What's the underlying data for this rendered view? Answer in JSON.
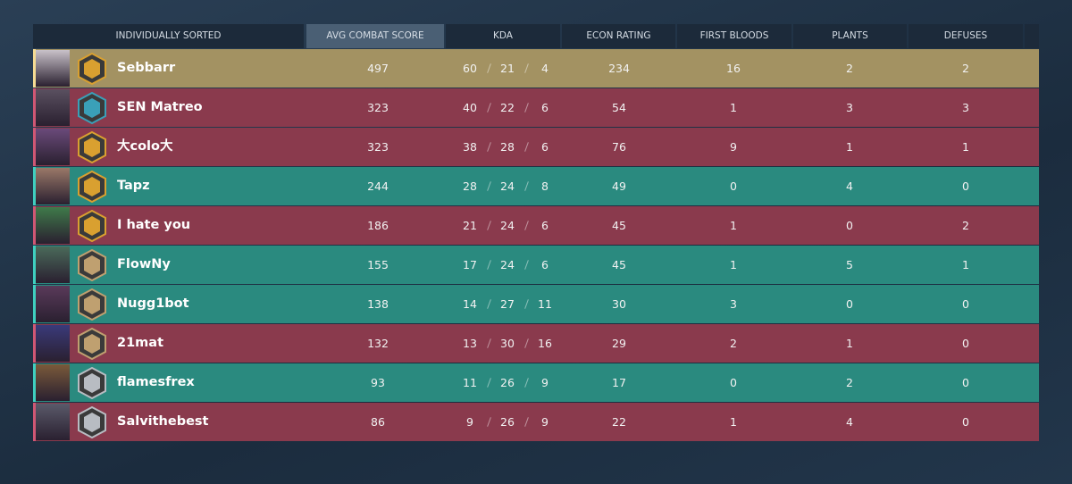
{
  "table": {
    "headers": [
      "INDIVIDUALLY SORTED",
      "AVG COMBAT SCORE",
      "KDA",
      "ECON RATING",
      "FIRST BLOODS",
      "PLANTS",
      "DEFUSES"
    ],
    "rows": [
      {
        "name": "Sebbarr",
        "acs": 497,
        "kda": [
          60,
          21,
          4
        ],
        "econ": 234,
        "first_bloods": 16,
        "plants": 2,
        "defuses": 2,
        "color": "#a39262"
      },
      {
        "name": "SEN Matreo",
        "acs": 323,
        "kda": [
          40,
          22,
          6
        ],
        "econ": 54,
        "first_bloods": 1,
        "plants": 3,
        "defuses": 3,
        "color": "#8a3a4d"
      },
      {
        "name": "大colo大",
        "acs": 323,
        "kda": [
          38,
          28,
          6
        ],
        "econ": 76,
        "first_bloods": 9,
        "plants": 1,
        "defuses": 1,
        "color": "#8a3a4d"
      },
      {
        "name": "Tapz",
        "acs": 244,
        "kda": [
          28,
          24,
          8
        ],
        "econ": 49,
        "first_bloods": 0,
        "plants": 4,
        "defuses": 0,
        "color": "#2a8a7f"
      },
      {
        "name": "I hate you",
        "acs": 186,
        "kda": [
          21,
          24,
          6
        ],
        "econ": 45,
        "first_bloods": 1,
        "plants": 0,
        "defuses": 2,
        "color": "#8a3a4d"
      },
      {
        "name": "FlowNy",
        "acs": 155,
        "kda": [
          17,
          24,
          6
        ],
        "econ": 45,
        "first_bloods": 1,
        "plants": 5,
        "defuses": 1,
        "color": "#2a8a7f"
      },
      {
        "name": "Nugg1bot",
        "acs": 138,
        "kda": [
          14,
          27,
          11
        ],
        "econ": 30,
        "first_bloods": 3,
        "plants": 0,
        "defuses": 0,
        "color": "#2a8a7f"
      },
      {
        "name": "21mat",
        "acs": 132,
        "kda": [
          13,
          30,
          16
        ],
        "econ": 29,
        "first_bloods": 2,
        "plants": 1,
        "defuses": 0,
        "color": "#8a3a4d"
      },
      {
        "name": "flamesfrex",
        "acs": 93,
        "kda": [
          11,
          26,
          9
        ],
        "econ": 17,
        "first_bloods": 0,
        "plants": 2,
        "defuses": 0,
        "color": "#2a8a7f"
      },
      {
        "name": "Salvithebest",
        "acs": 86,
        "kda": [
          9,
          26,
          9
        ],
        "econ": 22,
        "first_bloods": 1,
        "plants": 4,
        "defuses": 0,
        "color": "#8a3a4d"
      }
    ]
  }
}
